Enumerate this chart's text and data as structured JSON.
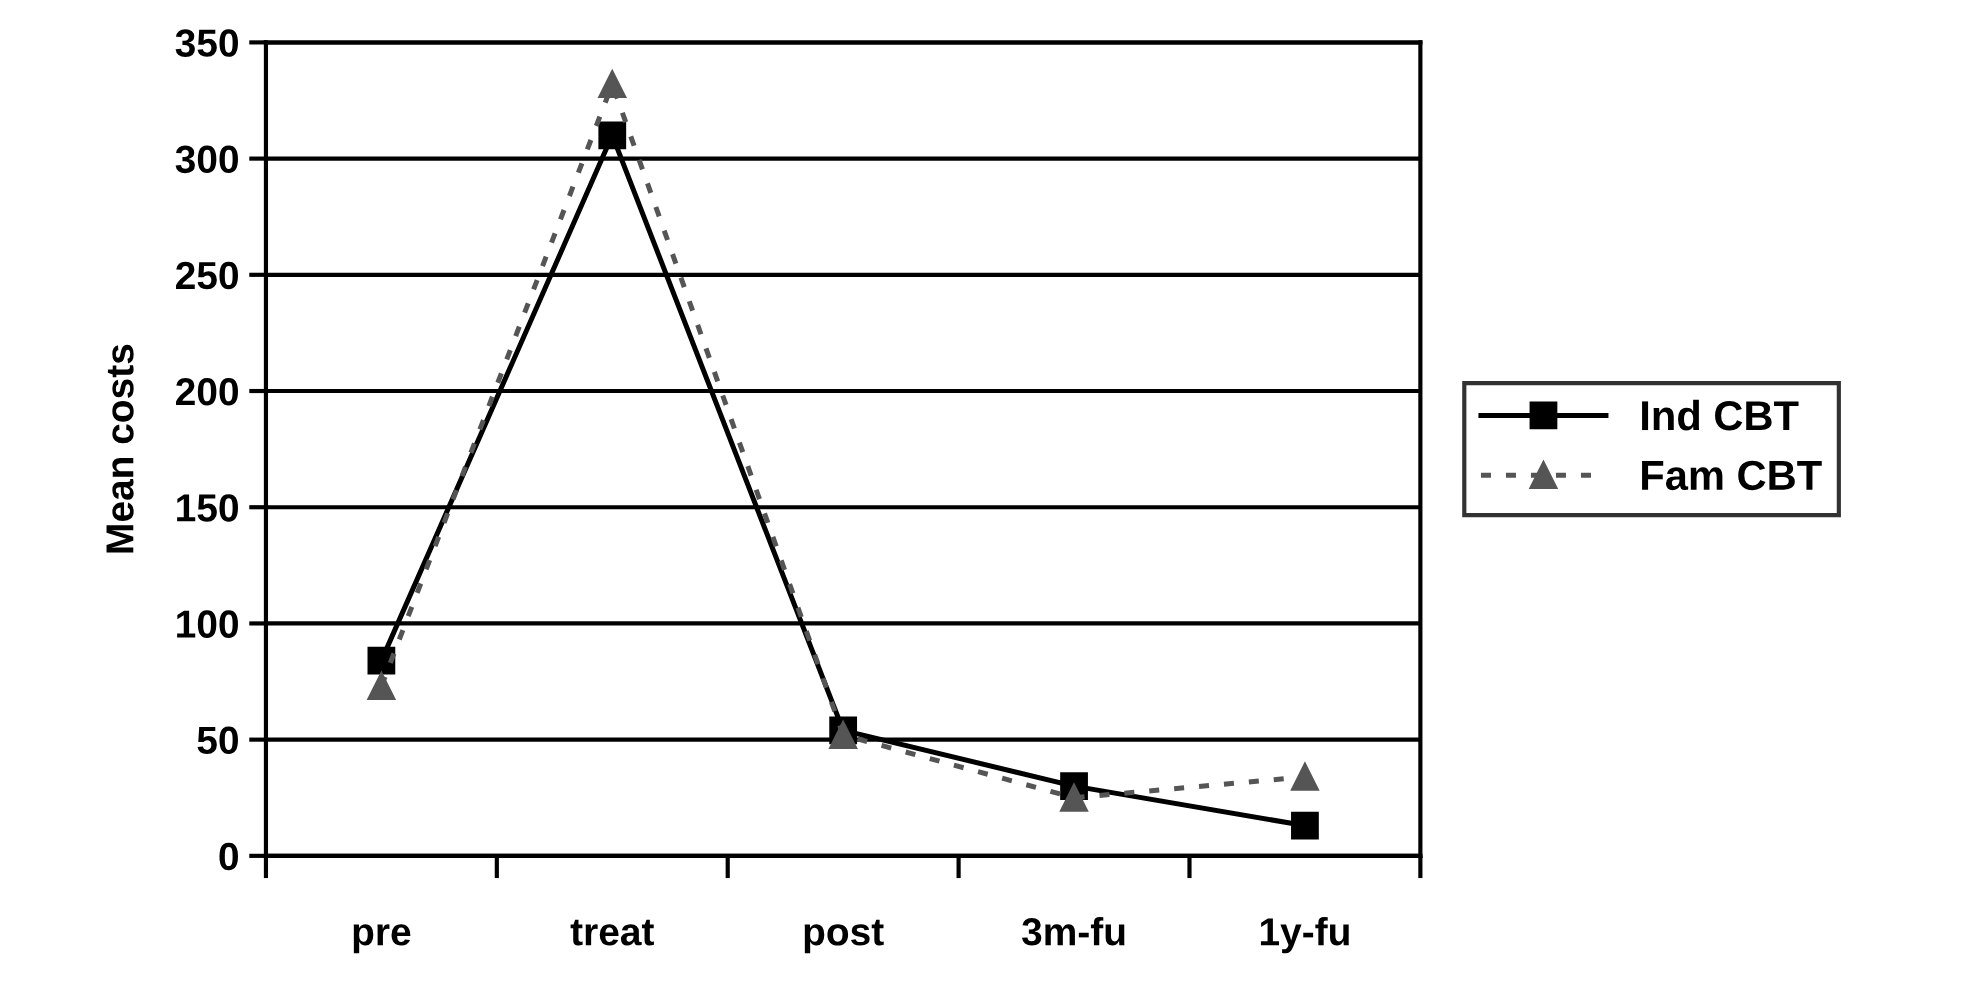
{
  "chart_data": {
    "type": "line",
    "ylabel": "Mean costs",
    "categories": [
      "pre",
      "treat",
      "post",
      "3m-fu",
      "1y-fu"
    ],
    "series": [
      {
        "name": "Ind CBT",
        "color": "#000000",
        "values": [
          84,
          310,
          54,
          30,
          13
        ],
        "marker": "square",
        "line_style": "solid"
      },
      {
        "name": "Fam CBT",
        "color": "#555555",
        "values": [
          73,
          332,
          52,
          25,
          34
        ],
        "marker": "triangle",
        "line_style": "dotted"
      }
    ],
    "ylim": [
      0,
      350
    ],
    "yticks": [
      0,
      50,
      100,
      150,
      200,
      250,
      300,
      350
    ],
    "grid": "y",
    "legend": "right"
  }
}
